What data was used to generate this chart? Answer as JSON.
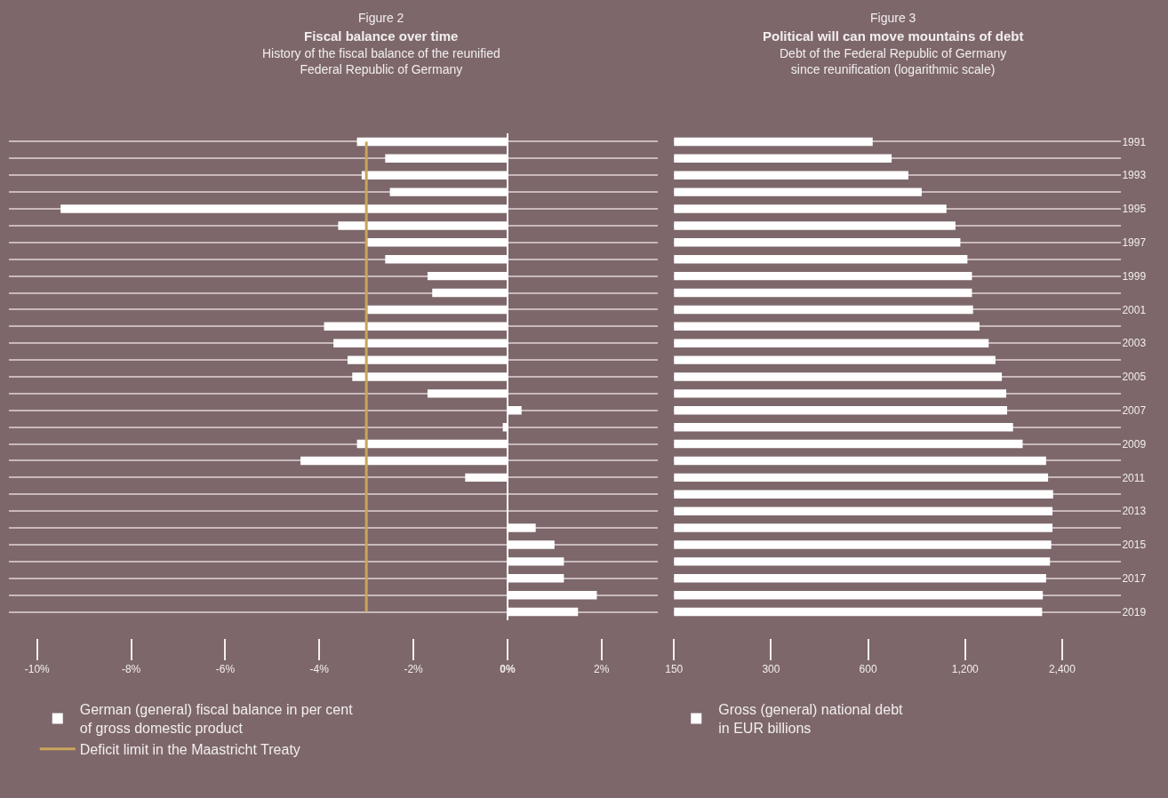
{
  "chart_data": [
    {
      "type": "bar",
      "orientation": "horizontal",
      "annotations": [
        "Figure 2"
      ],
      "title": "Fiscal balance over time",
      "subtitle": "History of the fiscal balance of the reunified Federal Republic of Germany",
      "categories": [
        "1991",
        null,
        "1993",
        null,
        "1995",
        null,
        "1997",
        null,
        "1999",
        null,
        "2001",
        null,
        "2003",
        null,
        "2005",
        null,
        "2007",
        null,
        "2009",
        null,
        "2011",
        null,
        "2013",
        null,
        "2015",
        null,
        "2017",
        null,
        "2019"
      ],
      "series": [
        {
          "name": "German (general) fiscal balance in per cent of gross domestic product",
          "color": "#ffffff",
          "values": [
            -3.2,
            -2.6,
            -3.1,
            -2.5,
            -9.5,
            -3.6,
            -3.0,
            -2.6,
            -1.7,
            -1.6,
            -3.0,
            -3.9,
            -3.7,
            -3.4,
            -3.3,
            -1.7,
            0.3,
            -0.1,
            -3.2,
            -4.4,
            -0.9,
            0.0,
            0.0,
            0.6,
            1.0,
            1.2,
            1.2,
            1.9,
            1.5
          ]
        }
      ],
      "ref_lines": [
        {
          "axis": "x",
          "value": -3,
          "label": "Deficit limit in the Maastricht Treaty",
          "color": "#c9a55a"
        }
      ],
      "xlim": [
        -10.6,
        3.2
      ],
      "xticks": [
        {
          "value": -10,
          "label": "-10%"
        },
        {
          "value": -8,
          "label": "-8%"
        },
        {
          "value": -6,
          "label": "-6%"
        },
        {
          "value": -4,
          "label": "-4%"
        },
        {
          "value": -2,
          "label": "-2%"
        },
        {
          "value": 0,
          "label": "0%"
        },
        {
          "value": 2,
          "label": "2%"
        }
      ],
      "grid": "y",
      "legend": "bottom",
      "tick_labels": "x"
    },
    {
      "type": "bar",
      "orientation": "horizontal",
      "annotations": [
        "Figure 3"
      ],
      "title": "Political will can move mountains of debt",
      "subtitle": "Debt of the Federal Republic of Germany since reunification (logarithmic scale)",
      "categories": [
        "1991",
        null,
        "1993",
        null,
        "1995",
        null,
        "1997",
        null,
        "1999",
        null,
        "2001",
        null,
        "2003",
        null,
        "2005",
        null,
        "2007",
        null,
        "2009",
        null,
        "2011",
        null,
        "2013",
        null,
        "2015",
        null,
        "2017",
        null,
        "2019"
      ],
      "series": [
        {
          "name": "Gross (general) national debt in EUR billions",
          "color": "#ffffff",
          "values": [
            620,
            710,
            800,
            880,
            1050,
            1120,
            1160,
            1220,
            1260,
            1260,
            1270,
            1330,
            1420,
            1490,
            1560,
            1610,
            1620,
            1690,
            1810,
            2140,
            2170,
            2250,
            2240,
            2240,
            2220,
            2200,
            2140,
            2090,
            2080
          ]
        }
      ],
      "xlim": [
        150,
        3660
      ],
      "xticks": [
        150,
        300,
        600,
        {
          "value": 1200,
          "label": "1,200"
        },
        {
          "value": 2400,
          "label": "2,400"
        }
      ],
      "log": "x",
      "grid": "y",
      "legend": "bottom"
    }
  ]
}
